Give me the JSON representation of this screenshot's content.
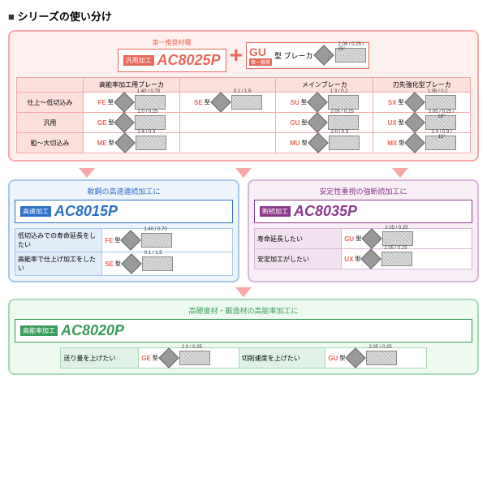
{
  "title": "シリーズの使い分け",
  "rec_grade": "第一推奨材種",
  "main": {
    "tag": "汎用加工",
    "grade": "AC8025P"
  },
  "gu": {
    "label": "GU",
    "type": "型 ブレーカ",
    "rec": "第一推奨",
    "dim": "2.05 / 0.25 / 25°"
  },
  "colors": {
    "main": "#e8685a",
    "hi": "#2b6fc9",
    "br": "#8b3a8b",
    "gr": "#3a9b5a"
  },
  "headers": [
    "",
    "高能率加工用ブレーカ",
    "",
    "メインブレーカ",
    "刃先強化型ブレーカ"
  ],
  "rows": [
    {
      "label": "仕上～低切込み",
      "cells": [
        {
          "bk": "FE",
          "d": "1.40 / 0.70"
        },
        {
          "bk": "SE",
          "d": "0.1 / 1.5"
        },
        {
          "bk": "SU",
          "d": "1.3 / 0.2"
        },
        {
          "bk": "SX",
          "d": "1.35 / 0.2"
        }
      ]
    },
    {
      "label": "汎用",
      "cells": [
        {
          "bk": "GE",
          "d": "2.0 / 0.25"
        },
        {
          "bk": "",
          "d": ""
        },
        {
          "bk": "GU",
          "d": "2.05 / 0.25"
        },
        {
          "bk": "UX",
          "d": "2.05 / 0.25 / 18°"
        }
      ]
    },
    {
      "label": "粗～大切込み",
      "cells": [
        {
          "bk": "ME",
          "d": "2.4 / 0.3"
        },
        {
          "bk": "",
          "d": ""
        },
        {
          "bk": "MU",
          "d": "2.0 / 0.3"
        },
        {
          "bk": "MX",
          "d": "2.0 / 0.3 / 15°"
        }
      ]
    }
  ],
  "hi": {
    "title": "軟鋼の高速連続加工に",
    "tag": "高速加工",
    "grade": "AC8015P",
    "rows": [
      {
        "h": "低切込みでの寿命延長をしたい",
        "bk": "FE",
        "d": "1.40 / 0.70"
      },
      {
        "h": "高能率で仕上げ加工をしたい",
        "bk": "SE",
        "d": "0.1 / 1.5"
      }
    ]
  },
  "br": {
    "title": "安定性重視の強断続加工に",
    "tag": "断続加工",
    "grade": "AC8035P",
    "rows": [
      {
        "h": "寿命延長したい",
        "bk": "GU",
        "d": "2.05 / 0.25"
      },
      {
        "h": "安定加工がしたい",
        "bk": "UX",
        "d": "2.05 / 0.25"
      }
    ]
  },
  "gr": {
    "title": "高硬度材・鍛造材の高能率加工に",
    "tag": "高能率加工",
    "grade": "AC8020P",
    "rows": [
      {
        "h": "送り量を上げたい",
        "bk": "GE",
        "d": "2.0 / 0.25"
      },
      {
        "h": "切削速度を上げたい",
        "bk": "GU",
        "d": "2.05 / 0.25"
      }
    ]
  }
}
